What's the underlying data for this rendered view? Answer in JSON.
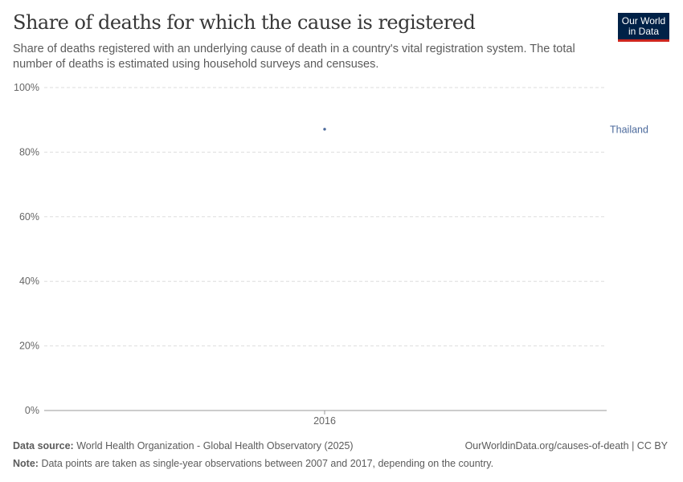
{
  "header": {
    "title": "Share of deaths for which the cause is registered",
    "subtitle": "Share of deaths registered with an underlying cause of death in a country's vital registration system. The total number of deaths is estimated using household surveys and censuses.",
    "logo": "Our World in Data"
  },
  "chart_data": {
    "type": "scatter",
    "title": "Share of deaths for which the cause is registered",
    "x": [
      2016
    ],
    "xticks": [
      "2016"
    ],
    "ylim": [
      0,
      100
    ],
    "yticks": [
      "0%",
      "20%",
      "40%",
      "60%",
      "80%",
      "100%"
    ],
    "grid": true,
    "series": [
      {
        "name": "Thailand",
        "color": "#4c6a9c",
        "values": [
          {
            "x": 2016,
            "y": 87.1
          }
        ]
      }
    ]
  },
  "footer": {
    "source_label": "Data source:",
    "source": "World Health Organization - Global Health Observatory (2025)",
    "url": "OurWorldinData.org/causes-of-death | CC BY",
    "note_label": "Note:",
    "note": "Data points are taken as single-year observations between 2007 and 2017, depending on the country."
  }
}
